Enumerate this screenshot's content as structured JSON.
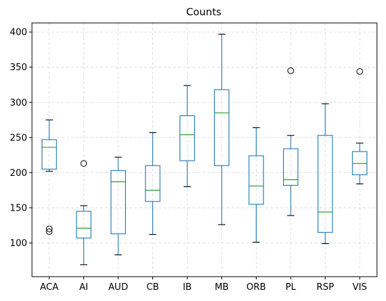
{
  "chart_data": {
    "type": "boxplot",
    "title": "Counts",
    "xlabel": "",
    "ylabel": "",
    "ylim": [
      52,
      413
    ],
    "yticks": [
      100,
      150,
      200,
      250,
      300,
      350,
      400
    ],
    "grid": true,
    "colors": {
      "box": "#1f77b4",
      "median": "#2ca02c",
      "whisker": "#1f77b4",
      "cap": "#000000",
      "grid": "#d9d9d9"
    },
    "categories": [
      "ACA",
      "AI",
      "AUD",
      "CB",
      "IB",
      "MB",
      "ORB",
      "PL",
      "RSP",
      "VIS"
    ],
    "boxes": [
      {
        "label": "ACA",
        "whislo": 202,
        "q1": 205,
        "med": 236,
        "q3": 247,
        "whishi": 275,
        "fliers": [
          120,
          116
        ]
      },
      {
        "label": "AI",
        "whislo": 69,
        "q1": 107,
        "med": 121,
        "q3": 145,
        "whishi": 153,
        "fliers": [
          213
        ]
      },
      {
        "label": "AUD",
        "whislo": 83,
        "q1": 113,
        "med": 187,
        "q3": 203,
        "whishi": 222,
        "fliers": []
      },
      {
        "label": "CB",
        "whislo": 112,
        "q1": 159,
        "med": 175,
        "q3": 210,
        "whishi": 257,
        "fliers": []
      },
      {
        "label": "IB",
        "whislo": 180,
        "q1": 217,
        "med": 254,
        "q3": 281,
        "whishi": 324,
        "fliers": []
      },
      {
        "label": "MB",
        "whislo": 126,
        "q1": 210,
        "med": 285,
        "q3": 318,
        "whishi": 397,
        "fliers": []
      },
      {
        "label": "ORB",
        "whislo": 101,
        "q1": 155,
        "med": 181,
        "q3": 224,
        "whishi": 264,
        "fliers": []
      },
      {
        "label": "PL",
        "whislo": 139,
        "q1": 182,
        "med": 190,
        "q3": 234,
        "whishi": 253,
        "fliers": [
          345
        ]
      },
      {
        "label": "RSP",
        "whislo": 99,
        "q1": 115,
        "med": 144,
        "q3": 253,
        "whishi": 298,
        "fliers": []
      },
      {
        "label": "VIS",
        "whislo": 184,
        "q1": 197,
        "med": 213,
        "q3": 230,
        "whishi": 242,
        "fliers": [
          344
        ]
      }
    ]
  }
}
